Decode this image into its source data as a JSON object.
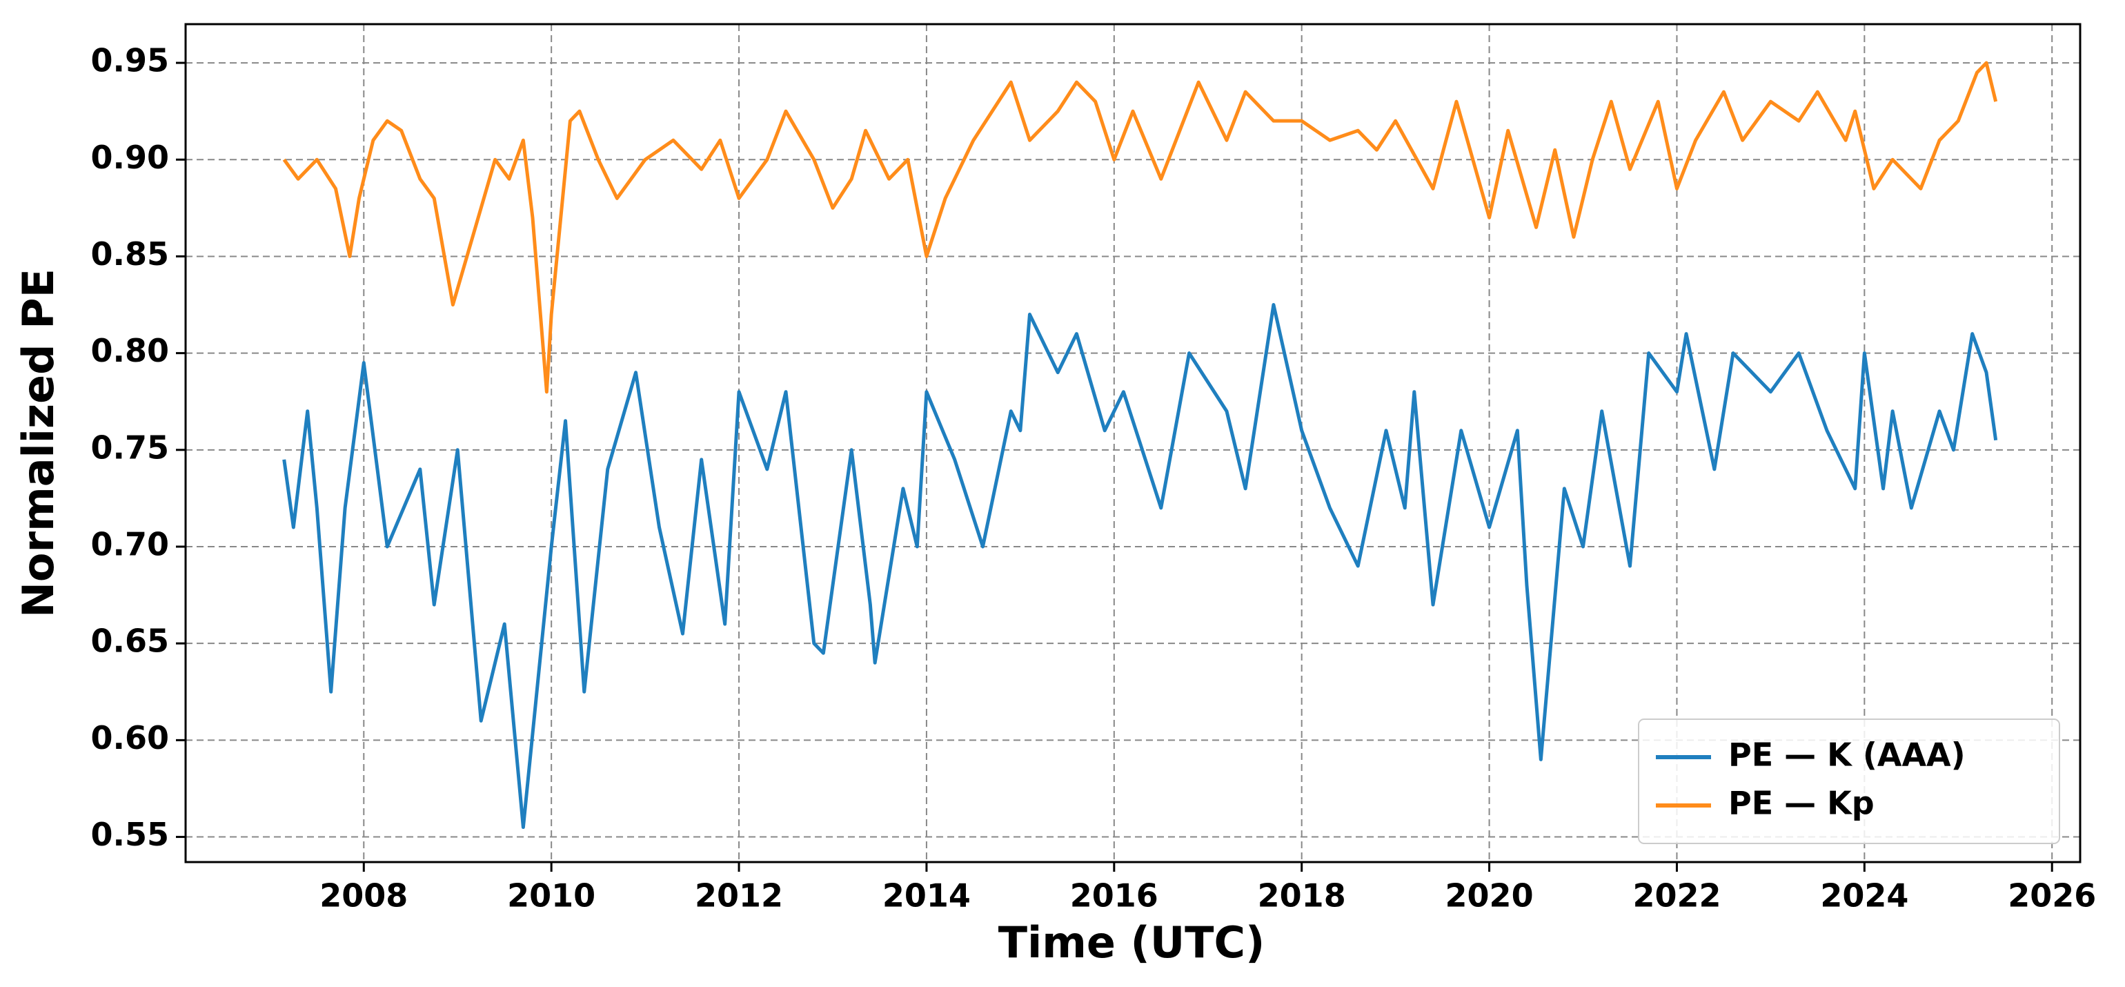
{
  "chart_data": {
    "type": "line",
    "x_label": "Time (UTC)",
    "y_label": "Normalized PE",
    "xlim": [
      2006.1,
      2026.3
    ],
    "xticks": [
      2008,
      2010,
      2012,
      2014,
      2016,
      2018,
      2020,
      2022,
      2024,
      2026
    ],
    "ylim": [
      0.537,
      0.97
    ],
    "yticks": [
      0.55,
      {
        "value": 0.6,
        "label": "0.60"
      },
      0.65,
      {
        "value": 0.7,
        "label": "0.70"
      },
      0.75,
      {
        "value": 0.8,
        "label": "0.80"
      },
      0.85,
      {
        "value": 0.9,
        "label": "0.90"
      },
      0.95
    ],
    "grid": true,
    "legend": "lower right",
    "series": [
      {
        "name": "PE — K (AAA)",
        "color": "#1f7fbf",
        "x": [
          2007.15,
          2007.25,
          2007.4,
          2007.5,
          2007.65,
          2007.8,
          2008.0,
          2008.25,
          2008.6,
          2008.75,
          2009.0,
          2009.25,
          2009.5,
          2009.7,
          2010.0,
          2010.15,
          2010.35,
          2010.6,
          2010.9,
          2011.15,
          2011.4,
          2011.6,
          2011.85,
          2012.0,
          2012.3,
          2012.5,
          2012.8,
          2012.9,
          2013.2,
          2013.4,
          2013.45,
          2013.75,
          2013.9,
          2014.0,
          2014.3,
          2014.6,
          2014.9,
          2015.0,
          2015.1,
          2015.4,
          2015.6,
          2015.9,
          2016.1,
          2016.5,
          2016.8,
          2017.2,
          2017.4,
          2017.7,
          2018.0,
          2018.3,
          2018.6,
          2018.9,
          2019.1,
          2019.2,
          2019.4,
          2019.7,
          2020.0,
          2020.3,
          2020.4,
          2020.55,
          2020.8,
          2021.0,
          2021.2,
          2021.5,
          2021.7,
          2022.0,
          2022.1,
          2022.4,
          2022.6,
          2023.0,
          2023.3,
          2023.6,
          2023.9,
          2024.0,
          2024.2,
          2024.3,
          2024.5,
          2024.8,
          2024.95,
          2025.15,
          2025.3,
          2025.4
        ],
        "values": [
          0.745,
          0.71,
          0.77,
          0.72,
          0.625,
          0.72,
          0.795,
          0.7,
          0.74,
          0.67,
          0.75,
          0.61,
          0.66,
          0.555,
          0.7,
          0.765,
          0.625,
          0.74,
          0.79,
          0.71,
          0.655,
          0.745,
          0.66,
          0.78,
          0.74,
          0.78,
          0.65,
          0.645,
          0.75,
          0.67,
          0.64,
          0.73,
          0.7,
          0.78,
          0.745,
          0.7,
          0.77,
          0.76,
          0.82,
          0.79,
          0.81,
          0.76,
          0.78,
          0.72,
          0.8,
          0.77,
          0.73,
          0.825,
          0.76,
          0.72,
          0.69,
          0.76,
          0.72,
          0.78,
          0.67,
          0.76,
          0.71,
          0.76,
          0.68,
          0.59,
          0.73,
          0.7,
          0.77,
          0.69,
          0.8,
          0.78,
          0.81,
          0.74,
          0.8,
          0.78,
          0.8,
          0.76,
          0.73,
          0.8,
          0.73,
          0.77,
          0.72,
          0.77,
          0.75,
          0.81,
          0.79,
          0.755
        ]
      },
      {
        "name": "PE — Kp",
        "color": "#ff8c1a",
        "x": [
          2007.15,
          2007.3,
          2007.5,
          2007.7,
          2007.85,
          2007.95,
          2008.1,
          2008.25,
          2008.4,
          2008.6,
          2008.75,
          2008.95,
          2009.1,
          2009.4,
          2009.55,
          2009.7,
          2009.8,
          2009.95,
          2010.0,
          2010.2,
          2010.3,
          2010.5,
          2010.7,
          2011.0,
          2011.3,
          2011.6,
          2011.8,
          2012.0,
          2012.3,
          2012.5,
          2012.8,
          2013.0,
          2013.2,
          2013.35,
          2013.6,
          2013.8,
          2014.0,
          2014.2,
          2014.5,
          2014.9,
          2015.1,
          2015.4,
          2015.6,
          2015.8,
          2016.0,
          2016.2,
          2016.5,
          2016.7,
          2016.9,
          2017.2,
          2017.4,
          2017.7,
          2018.0,
          2018.3,
          2018.6,
          2018.8,
          2019.0,
          2019.4,
          2019.65,
          2020.0,
          2020.2,
          2020.5,
          2020.7,
          2020.9,
          2021.1,
          2021.3,
          2021.5,
          2021.8,
          2022.0,
          2022.2,
          2022.5,
          2022.7,
          2023.0,
          2023.3,
          2023.5,
          2023.8,
          2023.9,
          2024.1,
          2024.3,
          2024.6,
          2024.8,
          2025.0,
          2025.2,
          2025.3,
          2025.4
        ],
        "values": [
          0.9,
          0.89,
          0.9,
          0.885,
          0.85,
          0.88,
          0.91,
          0.92,
          0.915,
          0.89,
          0.88,
          0.825,
          0.85,
          0.9,
          0.89,
          0.91,
          0.87,
          0.78,
          0.82,
          0.92,
          0.925,
          0.9,
          0.88,
          0.9,
          0.91,
          0.895,
          0.91,
          0.88,
          0.9,
          0.925,
          0.9,
          0.875,
          0.89,
          0.915,
          0.89,
          0.9,
          0.85,
          0.88,
          0.91,
          0.94,
          0.91,
          0.925,
          0.94,
          0.93,
          0.9,
          0.925,
          0.89,
          0.915,
          0.94,
          0.91,
          0.935,
          0.92,
          0.92,
          0.91,
          0.915,
          0.905,
          0.92,
          0.885,
          0.93,
          0.87,
          0.915,
          0.865,
          0.905,
          0.86,
          0.9,
          0.93,
          0.895,
          0.93,
          0.885,
          0.91,
          0.935,
          0.91,
          0.93,
          0.92,
          0.935,
          0.91,
          0.925,
          0.885,
          0.9,
          0.885,
          0.91,
          0.92,
          0.945,
          0.95,
          0.93
        ]
      }
    ]
  }
}
